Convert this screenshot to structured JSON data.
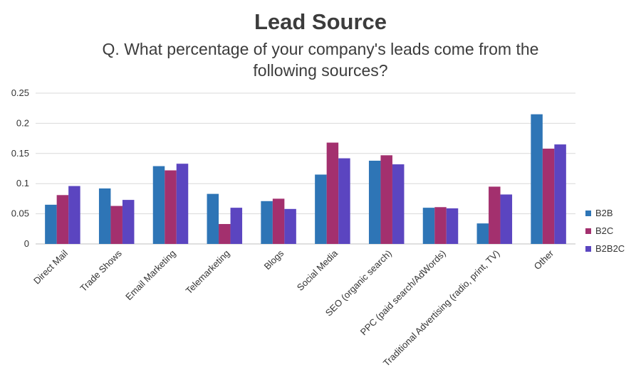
{
  "chart_data": {
    "type": "bar",
    "title": "Lead Source",
    "subtitle_line1": "Q. What percentage of your company's leads come from the",
    "subtitle_line2": "following sources?",
    "categories": [
      "Direct Mail",
      "Trade Shows",
      "Email Marketing",
      "Telemarketing",
      "Blogs",
      "Social Media",
      "SEO (organic search)",
      "PPC (paid search/AdWords)",
      "Traditional Advertising (radio, print, TV)",
      "Other"
    ],
    "series": [
      {
        "name": "B2B",
        "color": "#2e75b6",
        "values": [
          0.065,
          0.092,
          0.129,
          0.083,
          0.071,
          0.115,
          0.138,
          0.06,
          0.034,
          0.215
        ]
      },
      {
        "name": "B2C",
        "color": "#a3306e",
        "values": [
          0.081,
          0.063,
          0.122,
          0.033,
          0.075,
          0.168,
          0.147,
          0.061,
          0.095,
          0.158
        ]
      },
      {
        "name": "B2B2C",
        "color": "#5b45c0",
        "values": [
          0.096,
          0.073,
          0.133,
          0.06,
          0.058,
          0.142,
          0.132,
          0.059,
          0.082,
          0.165
        ]
      }
    ],
    "yticks": [
      "0",
      "0.05",
      "0.1",
      "0.15",
      "0.2",
      "0.25"
    ],
    "ylim": [
      0,
      0.25
    ],
    "xlabel": "",
    "ylabel": "",
    "legend_position": "right",
    "grid": true
  }
}
